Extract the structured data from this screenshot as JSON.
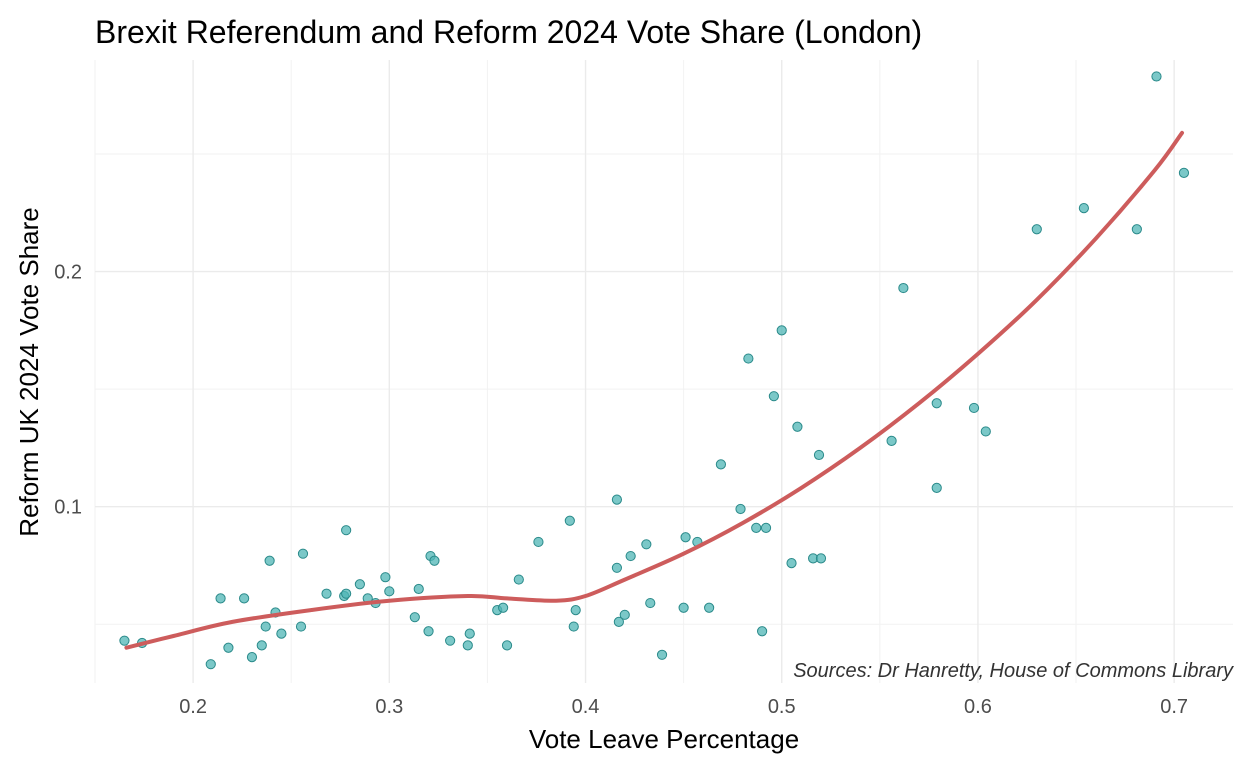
{
  "chart_data": {
    "type": "scatter",
    "title": "Brexit Referendum and Reform 2024 Vote Share (London)",
    "xlabel": "Vote Leave Percentage",
    "ylabel": "Reform UK 2024 Vote Share",
    "caption": "Sources: Dr Hanretty, House of Commons Library",
    "xlim": [
      0.15,
      0.73
    ],
    "ylim": [
      0.025,
      0.29
    ],
    "x_ticks": [
      {
        "value": 0.2,
        "label": "0.2"
      },
      {
        "value": 0.3,
        "label": "0.3"
      },
      {
        "value": 0.4,
        "label": "0.4"
      },
      {
        "value": 0.5,
        "label": "0.5"
      },
      {
        "value": 0.6,
        "label": "0.6"
      },
      {
        "value": 0.7,
        "label": "0.7"
      }
    ],
    "y_ticks": [
      {
        "value": 0.1,
        "label": "0.1"
      },
      {
        "value": 0.2,
        "label": "0.2"
      }
    ],
    "grid": true,
    "colors": {
      "points_fill": "#4fb5b5",
      "points_stroke": "#2a8a8a",
      "trend_line": "#cd5c5c"
    },
    "points": [
      {
        "x": 0.165,
        "y": 0.043
      },
      {
        "x": 0.174,
        "y": 0.042
      },
      {
        "x": 0.209,
        "y": 0.033
      },
      {
        "x": 0.214,
        "y": 0.061
      },
      {
        "x": 0.218,
        "y": 0.04
      },
      {
        "x": 0.226,
        "y": 0.061
      },
      {
        "x": 0.23,
        "y": 0.036
      },
      {
        "x": 0.235,
        "y": 0.041
      },
      {
        "x": 0.237,
        "y": 0.049
      },
      {
        "x": 0.239,
        "y": 0.077
      },
      {
        "x": 0.242,
        "y": 0.055
      },
      {
        "x": 0.245,
        "y": 0.046
      },
      {
        "x": 0.255,
        "y": 0.049
      },
      {
        "x": 0.256,
        "y": 0.08
      },
      {
        "x": 0.268,
        "y": 0.063
      },
      {
        "x": 0.277,
        "y": 0.062
      },
      {
        "x": 0.278,
        "y": 0.063
      },
      {
        "x": 0.278,
        "y": 0.09
      },
      {
        "x": 0.285,
        "y": 0.067
      },
      {
        "x": 0.289,
        "y": 0.061
      },
      {
        "x": 0.293,
        "y": 0.059
      },
      {
        "x": 0.298,
        "y": 0.07
      },
      {
        "x": 0.3,
        "y": 0.064
      },
      {
        "x": 0.313,
        "y": 0.053
      },
      {
        "x": 0.315,
        "y": 0.065
      },
      {
        "x": 0.32,
        "y": 0.047
      },
      {
        "x": 0.321,
        "y": 0.079
      },
      {
        "x": 0.323,
        "y": 0.077
      },
      {
        "x": 0.331,
        "y": 0.043
      },
      {
        "x": 0.34,
        "y": 0.041
      },
      {
        "x": 0.341,
        "y": 0.046
      },
      {
        "x": 0.355,
        "y": 0.056
      },
      {
        "x": 0.358,
        "y": 0.057
      },
      {
        "x": 0.36,
        "y": 0.041
      },
      {
        "x": 0.366,
        "y": 0.069
      },
      {
        "x": 0.376,
        "y": 0.085
      },
      {
        "x": 0.392,
        "y": 0.094
      },
      {
        "x": 0.394,
        "y": 0.049
      },
      {
        "x": 0.395,
        "y": 0.056
      },
      {
        "x": 0.416,
        "y": 0.074
      },
      {
        "x": 0.416,
        "y": 0.103
      },
      {
        "x": 0.417,
        "y": 0.051
      },
      {
        "x": 0.42,
        "y": 0.054
      },
      {
        "x": 0.423,
        "y": 0.079
      },
      {
        "x": 0.431,
        "y": 0.084
      },
      {
        "x": 0.433,
        "y": 0.059
      },
      {
        "x": 0.439,
        "y": 0.037
      },
      {
        "x": 0.45,
        "y": 0.057
      },
      {
        "x": 0.451,
        "y": 0.087
      },
      {
        "x": 0.457,
        "y": 0.085
      },
      {
        "x": 0.463,
        "y": 0.057
      },
      {
        "x": 0.469,
        "y": 0.118
      },
      {
        "x": 0.479,
        "y": 0.099
      },
      {
        "x": 0.483,
        "y": 0.163
      },
      {
        "x": 0.487,
        "y": 0.091
      },
      {
        "x": 0.49,
        "y": 0.047
      },
      {
        "x": 0.492,
        "y": 0.091
      },
      {
        "x": 0.496,
        "y": 0.147
      },
      {
        "x": 0.5,
        "y": 0.175
      },
      {
        "x": 0.505,
        "y": 0.076
      },
      {
        "x": 0.508,
        "y": 0.134
      },
      {
        "x": 0.516,
        "y": 0.078
      },
      {
        "x": 0.519,
        "y": 0.122
      },
      {
        "x": 0.52,
        "y": 0.078
      },
      {
        "x": 0.556,
        "y": 0.128
      },
      {
        "x": 0.562,
        "y": 0.193
      },
      {
        "x": 0.579,
        "y": 0.144
      },
      {
        "x": 0.579,
        "y": 0.108
      },
      {
        "x": 0.598,
        "y": 0.142
      },
      {
        "x": 0.604,
        "y": 0.132
      },
      {
        "x": 0.63,
        "y": 0.218
      },
      {
        "x": 0.654,
        "y": 0.227
      },
      {
        "x": 0.681,
        "y": 0.218
      },
      {
        "x": 0.691,
        "y": 0.283
      },
      {
        "x": 0.705,
        "y": 0.242
      }
    ],
    "trend": [
      {
        "x": 0.166,
        "y": 0.04
      },
      {
        "x": 0.19,
        "y": 0.045
      },
      {
        "x": 0.22,
        "y": 0.051
      },
      {
        "x": 0.26,
        "y": 0.056
      },
      {
        "x": 0.3,
        "y": 0.06
      },
      {
        "x": 0.34,
        "y": 0.062
      },
      {
        "x": 0.36,
        "y": 0.061
      },
      {
        "x": 0.385,
        "y": 0.06
      },
      {
        "x": 0.4,
        "y": 0.062
      },
      {
        "x": 0.42,
        "y": 0.069
      },
      {
        "x": 0.45,
        "y": 0.08
      },
      {
        "x": 0.48,
        "y": 0.093
      },
      {
        "x": 0.51,
        "y": 0.108
      },
      {
        "x": 0.54,
        "y": 0.125
      },
      {
        "x": 0.57,
        "y": 0.144
      },
      {
        "x": 0.6,
        "y": 0.165
      },
      {
        "x": 0.63,
        "y": 0.188
      },
      {
        "x": 0.66,
        "y": 0.214
      },
      {
        "x": 0.69,
        "y": 0.243
      },
      {
        "x": 0.704,
        "y": 0.259
      }
    ]
  }
}
